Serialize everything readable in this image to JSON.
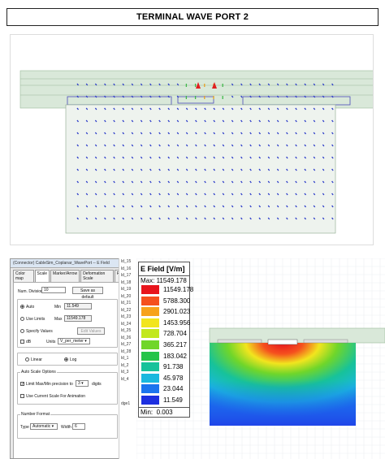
{
  "title": "TERMINAL WAVE PORT 2",
  "panel": {
    "window_title": "(Connector) CableSim_Coplanar_WavePort -- E Field",
    "tabs": [
      "Color map",
      "Scale",
      "Marker/Arrow",
      "Deformation Scale",
      "Plots"
    ],
    "num_division_label": "Num. Division",
    "num_division_value": "10",
    "save_default": "Save as default",
    "auto_label": "Auto",
    "min_label": "Min",
    "min_value": "11.549",
    "use_limits_label": "Use Limits",
    "max_label": "Max",
    "max_value": "11549.178",
    "specify_values_label": "Specify Values",
    "edit_values": "Edit Values",
    "db_label": "dB",
    "units_label": "Units",
    "units_value": "V_per_meter",
    "linear_label": "Linear",
    "log_label": "Log",
    "auto_scale_options": "Auto Scale Options",
    "limit_precision_label": "Limit Max/Min precision to",
    "precision_value": "3",
    "digits_label": "digits",
    "current_scale_label": "Use Current Scale For Animation",
    "number_format": "Number Format",
    "type_label": "Type",
    "type_value": "Automatic",
    "width_label": "Width",
    "width_value": "6"
  },
  "side_list": [
    "ld_15",
    "ld_16",
    "ld_17",
    "ld_18",
    "ld_19",
    "ld_20",
    "ld_21",
    "ld_22",
    "ld_23",
    "ld_24",
    "ld_25",
    "ld_26",
    "ld_27",
    "ld_28",
    "ld_1",
    "ld_2",
    "ld_3",
    "ld_4",
    "dge1"
  ],
  "legend": {
    "title": "E Field [V/m]",
    "max_label": "Max:",
    "max_value": "11549.178",
    "min_label": "Min:",
    "min_value": "0.003",
    "entries": [
      {
        "value": "11549.178",
        "color": "#e8141c"
      },
      {
        "value": "5788.300",
        "color": "#f5501e"
      },
      {
        "value": "2901.023",
        "color": "#f7a21b"
      },
      {
        "value": "1453.956",
        "color": "#f2e51e"
      },
      {
        "value": "728.704",
        "color": "#c2e81e"
      },
      {
        "value": "365.217",
        "color": "#70d62a"
      },
      {
        "value": "183.042",
        "color": "#25c44a"
      },
      {
        "value": "91.738",
        "color": "#17c29a"
      },
      {
        "value": "45.978",
        "color": "#1ab8de"
      },
      {
        "value": "23.044",
        "color": "#1b74ee"
      },
      {
        "value": "11.549",
        "color": "#1d2fe0"
      }
    ]
  }
}
